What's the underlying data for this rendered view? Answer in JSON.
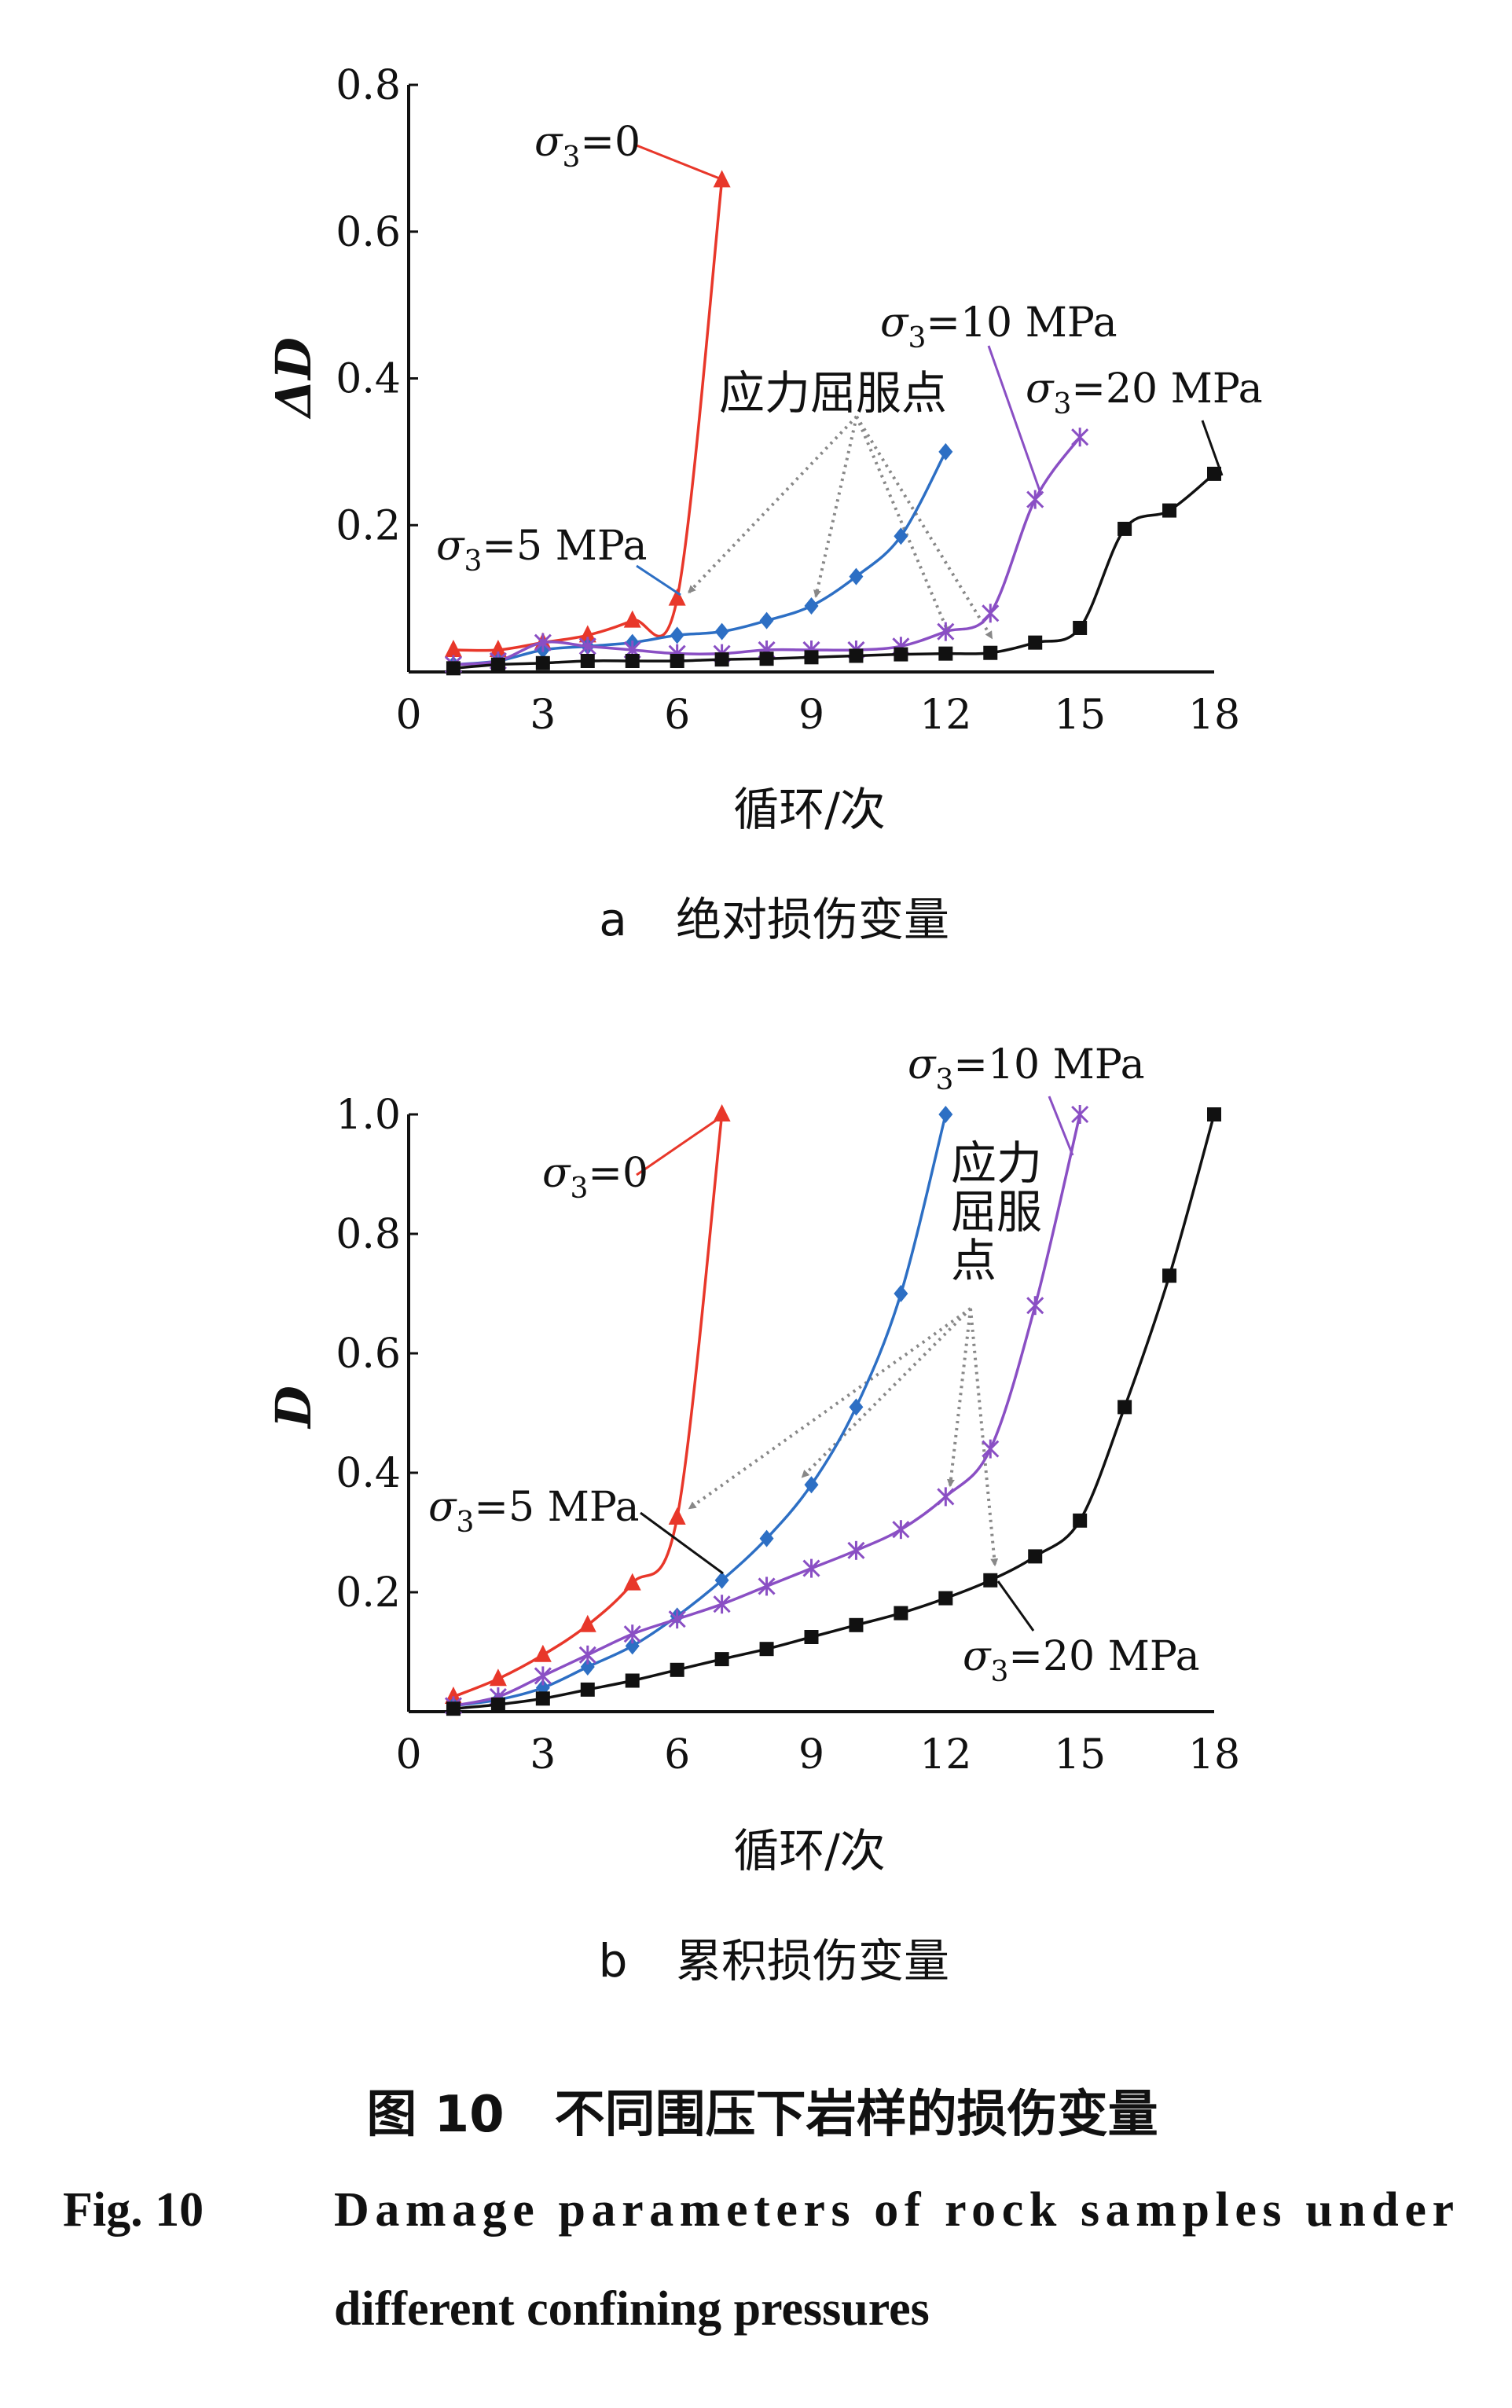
{
  "colors": {
    "s0": "#e8372a",
    "s5": "#2d6fc4",
    "s10": "#8a4fc4",
    "s20": "#111111",
    "arrow": "#888888"
  },
  "chart_data": [
    {
      "type": "line",
      "ylabel": "ΔD",
      "xlabel": "循环/次",
      "caption_letter": "a",
      "caption": "绝对损伤变量",
      "xlim": [
        0,
        18
      ],
      "ylim": [
        0,
        0.8
      ],
      "xticks": [
        "0",
        "3",
        "6",
        "9",
        "12",
        "15",
        "18"
      ],
      "yticks": [
        "0.2",
        "0.4",
        "0.6",
        "0.8"
      ],
      "yield_label": "应力屈服点",
      "series": [
        {
          "name": "σ3=0",
          "marker": "triangle",
          "color_key": "s0",
          "x": [
            1,
            2,
            3,
            4,
            5,
            6,
            7
          ],
          "y": [
            0.03,
            0.03,
            0.04,
            0.05,
            0.07,
            0.1,
            0.67
          ]
        },
        {
          "name": "σ3=5 MPa",
          "marker": "diamond",
          "color_key": "s5",
          "x": [
            1,
            2,
            3,
            4,
            5,
            6,
            7,
            8,
            9,
            10,
            11,
            12
          ],
          "y": [
            0.01,
            0.015,
            0.03,
            0.035,
            0.04,
            0.05,
            0.055,
            0.07,
            0.09,
            0.13,
            0.185,
            0.3
          ]
        },
        {
          "name": "σ3=10 MPa",
          "marker": "star",
          "color_key": "s10",
          "x": [
            1,
            2,
            3,
            4,
            5,
            6,
            7,
            8,
            9,
            10,
            11,
            12,
            13,
            14,
            15
          ],
          "y": [
            0.01,
            0.015,
            0.04,
            0.035,
            0.03,
            0.025,
            0.025,
            0.03,
            0.03,
            0.03,
            0.035,
            0.055,
            0.08,
            0.235,
            0.32
          ]
        },
        {
          "name": "σ3=20 MPa",
          "marker": "square",
          "color_key": "s20",
          "x": [
            1,
            2,
            3,
            4,
            5,
            6,
            7,
            8,
            9,
            10,
            11,
            12,
            13,
            14,
            15,
            16,
            17,
            18
          ],
          "y": [
            0.005,
            0.01,
            0.012,
            0.015,
            0.015,
            0.015,
            0.017,
            0.018,
            0.02,
            0.022,
            0.024,
            0.025,
            0.026,
            0.04,
            0.06,
            0.195,
            0.22,
            0.27
          ]
        }
      ]
    },
    {
      "type": "line",
      "ylabel": "D",
      "xlabel": "循环/次",
      "caption_letter": "b",
      "caption": "累积损伤变量",
      "xlim": [
        0,
        18
      ],
      "ylim": [
        0,
        1.0
      ],
      "xticks": [
        "0",
        "3",
        "6",
        "9",
        "12",
        "15",
        "18"
      ],
      "yticks": [
        "0.2",
        "0.4",
        "0.6",
        "0.8",
        "1.0"
      ],
      "yield_label": "应力\n屈服\n点",
      "series": [
        {
          "name": "σ3=0",
          "marker": "triangle",
          "color_key": "s0",
          "x": [
            1,
            2,
            3,
            4,
            5,
            6,
            7
          ],
          "y": [
            0.025,
            0.055,
            0.095,
            0.145,
            0.215,
            0.325,
            1.0
          ]
        },
        {
          "name": "σ3=5 MPa",
          "marker": "diamond",
          "color_key": "s5",
          "x": [
            1,
            2,
            3,
            4,
            5,
            6,
            7,
            8,
            9,
            10,
            11,
            12
          ],
          "y": [
            0.01,
            0.02,
            0.04,
            0.075,
            0.11,
            0.16,
            0.22,
            0.29,
            0.38,
            0.51,
            0.7,
            1.0
          ]
        },
        {
          "name": "σ3=10 MPa",
          "marker": "star",
          "color_key": "s10",
          "x": [
            1,
            2,
            3,
            4,
            5,
            6,
            7,
            8,
            9,
            10,
            11,
            12,
            13,
            14,
            15
          ],
          "y": [
            0.01,
            0.025,
            0.06,
            0.095,
            0.13,
            0.155,
            0.18,
            0.21,
            0.24,
            0.27,
            0.305,
            0.36,
            0.44,
            0.68,
            1.0
          ]
        },
        {
          "name": "σ3=20 MPa",
          "marker": "square",
          "color_key": "s20",
          "x": [
            1,
            2,
            3,
            4,
            5,
            6,
            7,
            8,
            9,
            10,
            11,
            12,
            13,
            14,
            15,
            16,
            17,
            18
          ],
          "y": [
            0.005,
            0.012,
            0.022,
            0.037,
            0.052,
            0.07,
            0.088,
            0.105,
            0.125,
            0.145,
            0.165,
            0.19,
            0.22,
            0.26,
            0.32,
            0.51,
            0.73,
            1.0
          ]
        }
      ]
    }
  ],
  "caption": {
    "cn": "图 10　不同围压下岩样的损伤变量",
    "en_label": "Fig.  10",
    "en_line1": "Damage parameters of rock samples under",
    "en_line2": "different confining pressures"
  }
}
